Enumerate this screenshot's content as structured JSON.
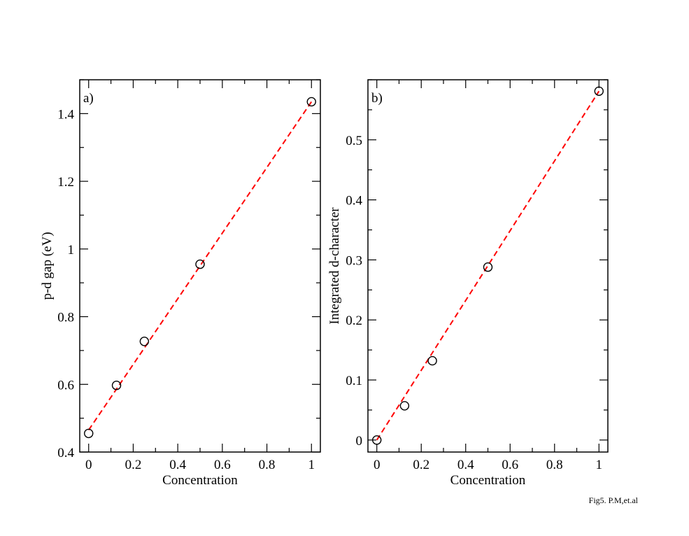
{
  "caption": "Fig5. P.M,et.al",
  "chart_data": [
    {
      "type": "scatter",
      "panel_label": "a)",
      "xlabel": "Concentration",
      "ylabel": "p-d gap (eV)",
      "xlim": [
        -0.04,
        1.04
      ],
      "ylim": [
        0.4,
        1.5
      ],
      "xticks": [
        0,
        0.2,
        0.4,
        0.6,
        0.8,
        1
      ],
      "xtick_labels": [
        "0",
        "0.2",
        "0.4",
        "0.6",
        "0.8",
        "1"
      ],
      "yticks": [
        0.4,
        0.6,
        0.8,
        1.0,
        1.2,
        1.4
      ],
      "ytick_labels": [
        "0.4",
        "0.6",
        "0.8",
        "1",
        "1.2",
        "1.4"
      ],
      "x_minor_step": 0.1,
      "y_minor_step": 0.1,
      "grid": false,
      "marker": "open-circle",
      "points": {
        "x": [
          0,
          0.125,
          0.25,
          0.5,
          1.0
        ],
        "y": [
          0.455,
          0.597,
          0.727,
          0.955,
          1.435
        ]
      },
      "fit_line": {
        "x": [
          0,
          1.0
        ],
        "y": [
          0.465,
          1.435
        ],
        "style": "dashed",
        "color": "#ff0000"
      }
    },
    {
      "type": "scatter",
      "panel_label": "b)",
      "xlabel": "Concentration",
      "ylabel": "Integrated d-character",
      "xlim": [
        -0.04,
        1.04
      ],
      "ylim": [
        -0.02,
        0.6
      ],
      "xticks": [
        0,
        0.2,
        0.4,
        0.6,
        0.8,
        1
      ],
      "xtick_labels": [
        "0",
        "0.2",
        "0.4",
        "0.6",
        "0.8",
        "1"
      ],
      "yticks": [
        0,
        0.1,
        0.2,
        0.3,
        0.4,
        0.5
      ],
      "ytick_labels": [
        "0",
        "0.1",
        "0.2",
        "0.3",
        "0.4",
        "0.5"
      ],
      "x_minor_step": 0.1,
      "y_minor_step": 0.05,
      "grid": false,
      "marker": "open-circle",
      "points": {
        "x": [
          0,
          0.125,
          0.25,
          0.5,
          1.0
        ],
        "y": [
          0.0,
          0.057,
          0.132,
          0.288,
          0.581
        ]
      },
      "fit_line": {
        "x": [
          0,
          1.0
        ],
        "y": [
          0.0,
          0.581
        ],
        "style": "dashed",
        "color": "#ff0000"
      }
    }
  ]
}
